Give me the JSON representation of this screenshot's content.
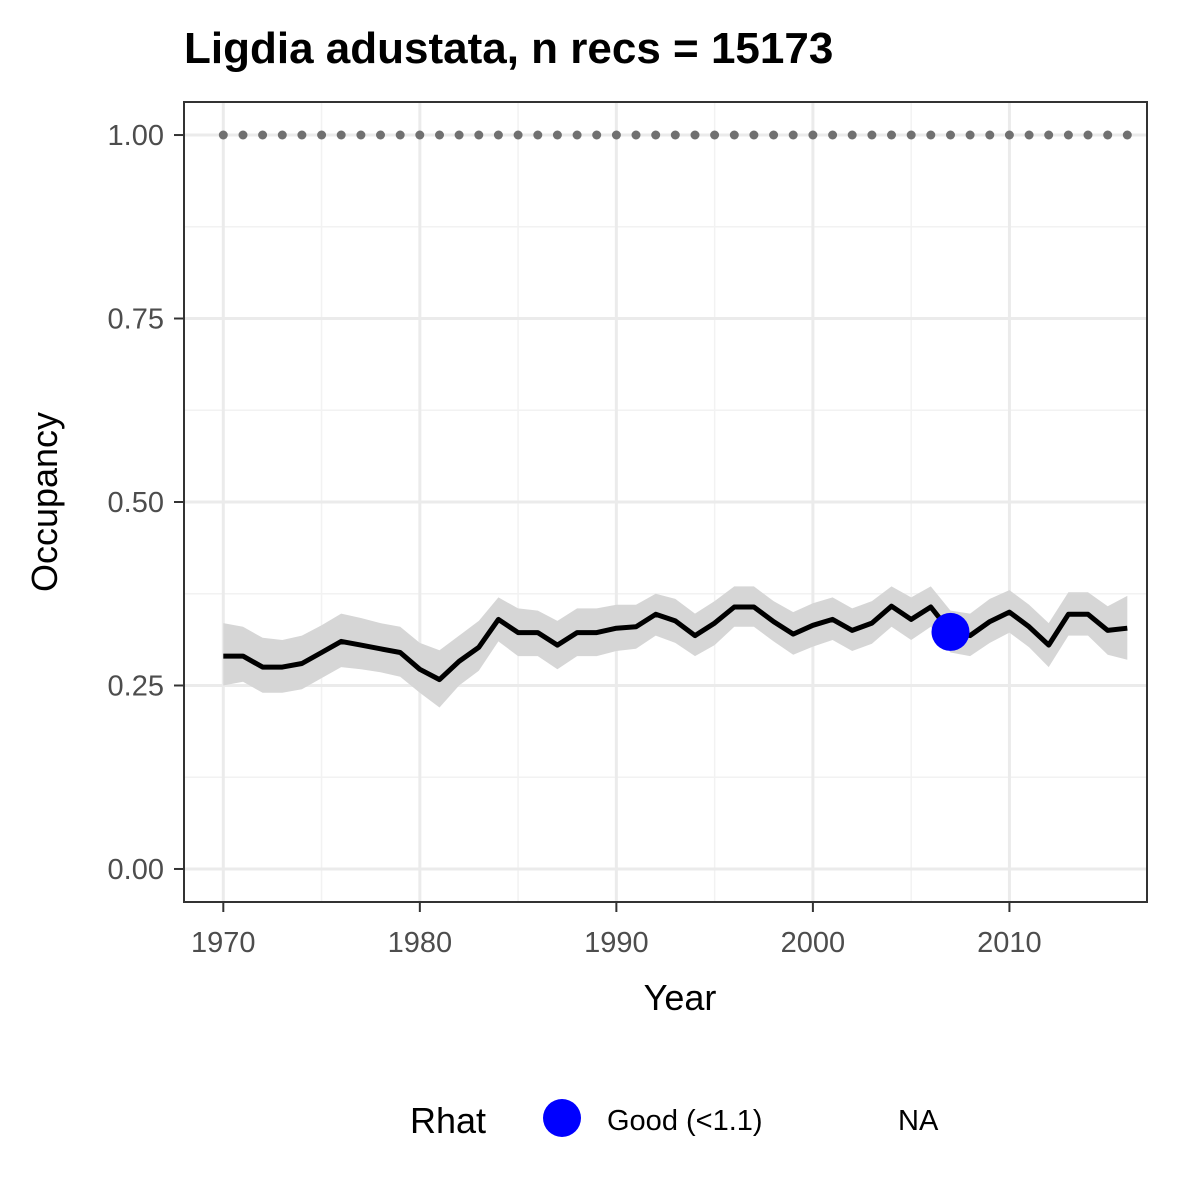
{
  "chart_data": {
    "type": "line",
    "title": "Ligdia adustata, n recs = 15173",
    "xlabel": "Year",
    "ylabel": "Occupancy",
    "xlim": [
      1968,
      2017
    ],
    "ylim": [
      -0.045,
      1.045
    ],
    "x_ticks": [
      1970,
      1980,
      1990,
      2000,
      2010
    ],
    "x_tick_labels": [
      "1970",
      "1980",
      "1990",
      "2000",
      "2010"
    ],
    "y_ticks": [
      0.0,
      0.25,
      0.5,
      0.75,
      1.0
    ],
    "y_tick_labels": [
      "0.00",
      "0.25",
      "0.50",
      "0.75",
      "1.00"
    ],
    "grid": true,
    "colors": {
      "line": "#000000",
      "ribbon": "#d6d6d6",
      "reference": "#707070",
      "good_point": "#0000ff"
    },
    "series": [
      {
        "x": [
          1970,
          1971,
          1972,
          1973,
          1974,
          1975,
          1976,
          1977,
          1978,
          1979,
          1980,
          1981,
          1982,
          1983,
          1984,
          1985,
          1986,
          1987,
          1988,
          1989,
          1990,
          1991,
          1992,
          1993,
          1994,
          1995,
          1996,
          1997,
          1998,
          1999,
          2000,
          2001,
          2002,
          2003,
          2004,
          2005,
          2006,
          2007,
          2008,
          2009,
          2010,
          2011,
          2012,
          2013,
          2014,
          2015,
          2016
        ],
        "y": [
          0.29,
          0.29,
          0.275,
          0.275,
          0.28,
          0.295,
          0.31,
          0.305,
          0.3,
          0.295,
          0.272,
          0.258,
          0.283,
          0.302,
          0.34,
          0.322,
          0.322,
          0.305,
          0.322,
          0.322,
          0.328,
          0.33,
          0.347,
          0.338,
          0.318,
          0.335,
          0.357,
          0.357,
          0.337,
          0.32,
          0.332,
          0.34,
          0.325,
          0.335,
          0.358,
          0.34,
          0.357,
          0.323,
          0.318,
          0.337,
          0.35,
          0.33,
          0.305,
          0.347,
          0.347,
          0.325,
          0.328
        ],
        "lower": [
          0.25,
          0.255,
          0.24,
          0.24,
          0.245,
          0.26,
          0.275,
          0.272,
          0.268,
          0.262,
          0.24,
          0.22,
          0.25,
          0.27,
          0.31,
          0.29,
          0.29,
          0.272,
          0.29,
          0.29,
          0.297,
          0.3,
          0.318,
          0.308,
          0.29,
          0.305,
          0.33,
          0.33,
          0.31,
          0.292,
          0.303,
          0.312,
          0.297,
          0.307,
          0.33,
          0.312,
          0.33,
          0.295,
          0.29,
          0.308,
          0.322,
          0.302,
          0.275,
          0.318,
          0.318,
          0.292,
          0.285
        ],
        "upper": [
          0.335,
          0.33,
          0.315,
          0.312,
          0.318,
          0.332,
          0.348,
          0.342,
          0.335,
          0.33,
          0.308,
          0.298,
          0.318,
          0.338,
          0.37,
          0.355,
          0.352,
          0.338,
          0.355,
          0.355,
          0.36,
          0.36,
          0.375,
          0.368,
          0.348,
          0.365,
          0.385,
          0.385,
          0.365,
          0.35,
          0.362,
          0.37,
          0.355,
          0.365,
          0.385,
          0.37,
          0.385,
          0.352,
          0.348,
          0.368,
          0.38,
          0.36,
          0.335,
          0.377,
          0.377,
          0.358,
          0.372
        ]
      }
    ],
    "reference_line": {
      "y": 1.0,
      "x": [
        1970,
        1971,
        1972,
        1973,
        1974,
        1975,
        1976,
        1977,
        1978,
        1979,
        1980,
        1981,
        1982,
        1983,
        1984,
        1985,
        1986,
        1987,
        1988,
        1989,
        1990,
        1991,
        1992,
        1993,
        1994,
        1995,
        1996,
        1997,
        1998,
        1999,
        2000,
        2001,
        2002,
        2003,
        2004,
        2005,
        2006,
        2007,
        2008,
        2009,
        2010,
        2011,
        2012,
        2013,
        2014,
        2015,
        2016
      ]
    },
    "points": [
      {
        "x": 2007,
        "y": 0.323,
        "category": "Good (<1.1)"
      }
    ],
    "legend": {
      "title": "Rhat",
      "position": "bottom",
      "entries": [
        {
          "label": "Good (<1.1)",
          "color": "#0000ff",
          "symbol": "circle"
        },
        {
          "label": "NA",
          "color": "",
          "symbol": "none"
        }
      ]
    }
  }
}
